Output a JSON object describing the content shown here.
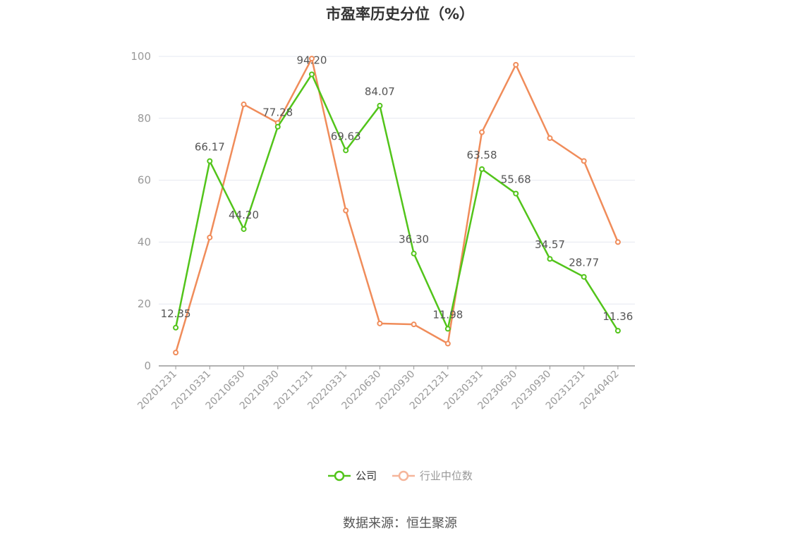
{
  "chart_data": {
    "type": "line",
    "title": "市盈率历史分位（%）",
    "categories": [
      "20201231",
      "20210331",
      "20210630",
      "20210930",
      "20211231",
      "20220331",
      "20220630",
      "20220930",
      "20221231",
      "20230331",
      "20230630",
      "20230930",
      "20231231",
      "20240402"
    ],
    "series": [
      {
        "name": "公司",
        "color": "#52c41a",
        "values": [
          12.35,
          66.17,
          44.2,
          77.28,
          94.2,
          69.63,
          84.07,
          36.3,
          11.98,
          63.58,
          55.68,
          34.57,
          28.77,
          11.36
        ],
        "labels": true
      },
      {
        "name": "行业中位数",
        "color": "#f08c5a",
        "values": [
          4.3,
          41.5,
          84.5,
          78.5,
          99.3,
          50.2,
          13.7,
          13.4,
          7.2,
          75.5,
          97.3,
          73.6,
          66.2,
          40.0
        ],
        "labels": false
      }
    ],
    "ylim": [
      0,
      100
    ],
    "yticks": [
      0,
      20,
      40,
      60,
      80,
      100
    ],
    "grid": true,
    "legend_position": "bottom"
  },
  "source": "数据来源：恒生聚源"
}
